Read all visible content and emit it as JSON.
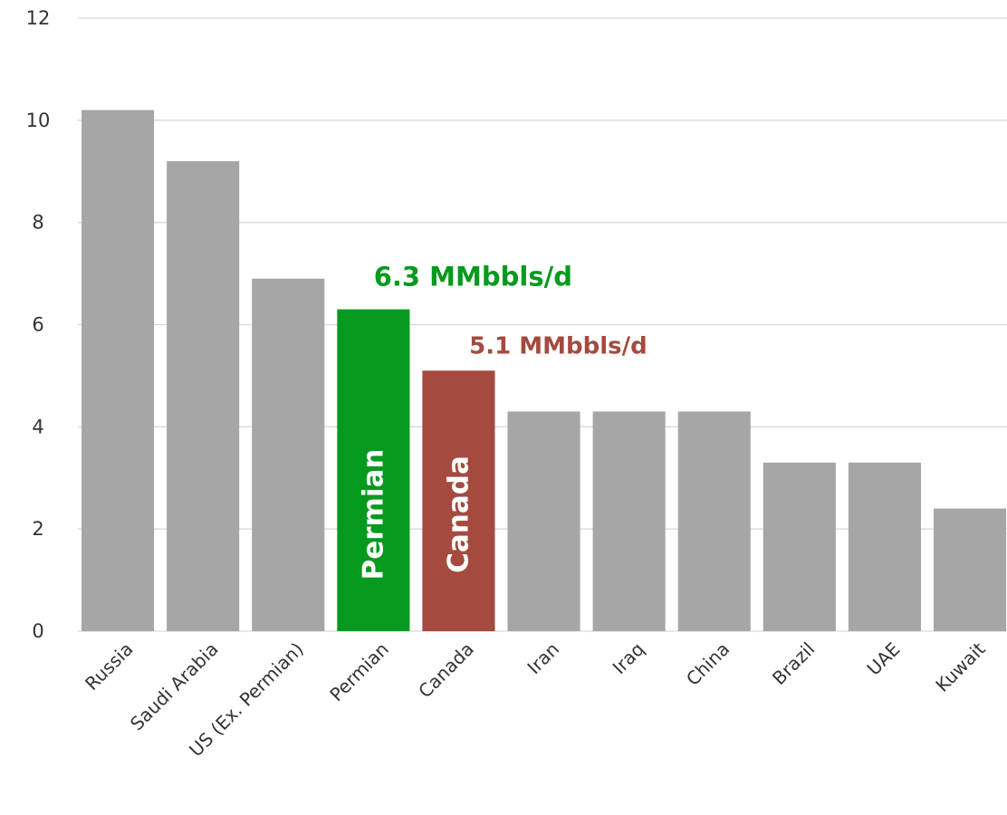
{
  "chart_data": {
    "type": "bar",
    "title": "",
    "xlabel": "",
    "ylabel": "",
    "categories": [
      "Russia",
      "Saudi Arabia",
      "US (Ex. Permian)",
      "Permian",
      "Canada",
      "Iran",
      "Iraq",
      "China",
      "Brazil",
      "UAE",
      "Kuwait"
    ],
    "values": [
      10.2,
      9.2,
      6.9,
      6.3,
      5.1,
      4.3,
      4.3,
      4.3,
      3.3,
      3.3,
      2.4
    ],
    "ylim": [
      0,
      12
    ],
    "yticks": [
      "0",
      "2",
      "4",
      "6",
      "8",
      "10",
      "12"
    ],
    "grid": true,
    "legend": "none",
    "colors": {
      "default": "#a6a6a6",
      "Permian": "#059a1e",
      "Canada": "#a44a3f",
      "grid": "#d9d9d9"
    },
    "bar_labels": {
      "Permian": "Permian",
      "Canada": "Canada"
    },
    "annotations": [
      {
        "category": "Permian",
        "text": "6.3 MMbbls/d",
        "color": "#059a1e"
      },
      {
        "category": "Canada",
        "text": "5.1 MMbbls/d",
        "color": "#a44a3f"
      }
    ]
  }
}
